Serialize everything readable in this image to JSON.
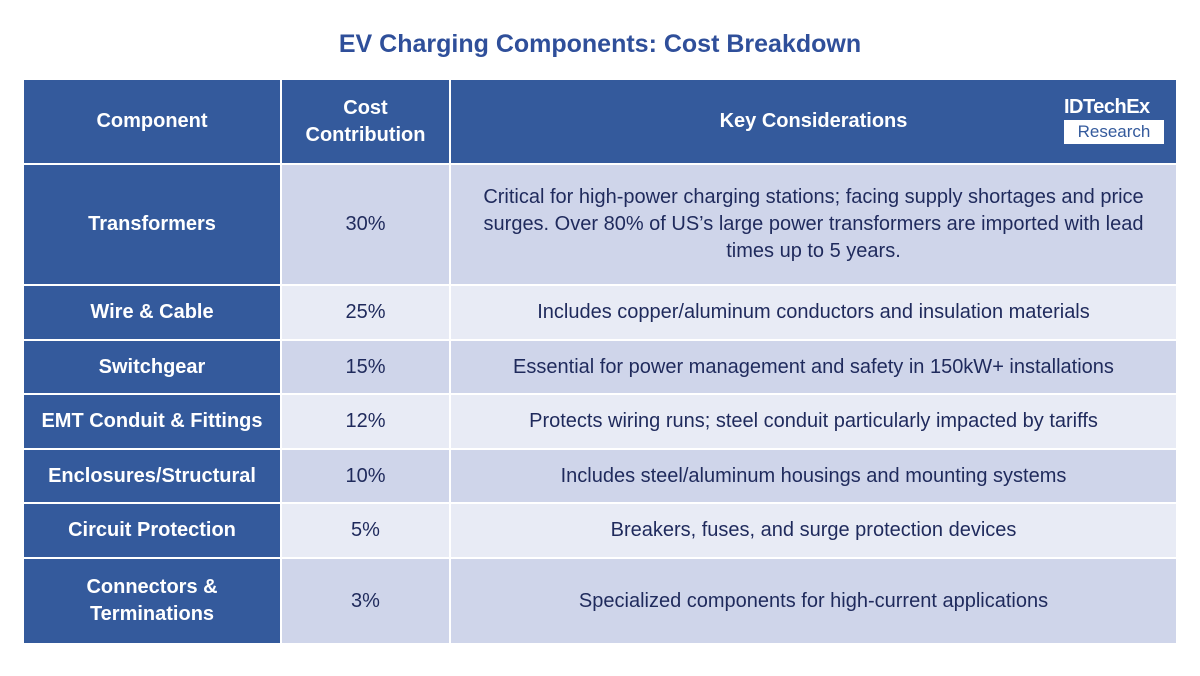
{
  "title": "EV Charging Components: Cost Breakdown",
  "logo": {
    "line1": "IDTechEx",
    "line2": "Research"
  },
  "colors": {
    "header": "#345a9c",
    "row_dark": "#cfd5ea",
    "row_light": "#e8ebf5",
    "text": "#1f2a5c",
    "title": "#2f4f9a"
  },
  "headers": [
    "Component",
    "Cost Contribution",
    "Key Considerations"
  ],
  "rows": [
    {
      "component": "Transformers",
      "cost": "30%",
      "note": "Critical for high-power charging stations; facing supply shortages and price surges. Over 80% of US’s large power transformers are imported with lead times up to 5 years."
    },
    {
      "component": "Wire & Cable",
      "cost": "25%",
      "note": "Includes copper/aluminum conductors and insulation materials"
    },
    {
      "component": "Switchgear",
      "cost": "15%",
      "note": "Essential for power management and safety in 150kW+ installations"
    },
    {
      "component": "EMT Conduit & Fittings",
      "cost": "12%",
      "note": "Protects wiring runs; steel conduit particularly impacted by tariffs"
    },
    {
      "component": "Enclosures/Structural",
      "cost": "10%",
      "note": "Includes steel/aluminum housings and mounting systems"
    },
    {
      "component": "Circuit Protection",
      "cost": "5%",
      "note": "Breakers, fuses, and surge protection devices"
    },
    {
      "component": "Connectors & Terminations",
      "cost": "3%",
      "note": "Specialized components for high-current applications"
    }
  ]
}
